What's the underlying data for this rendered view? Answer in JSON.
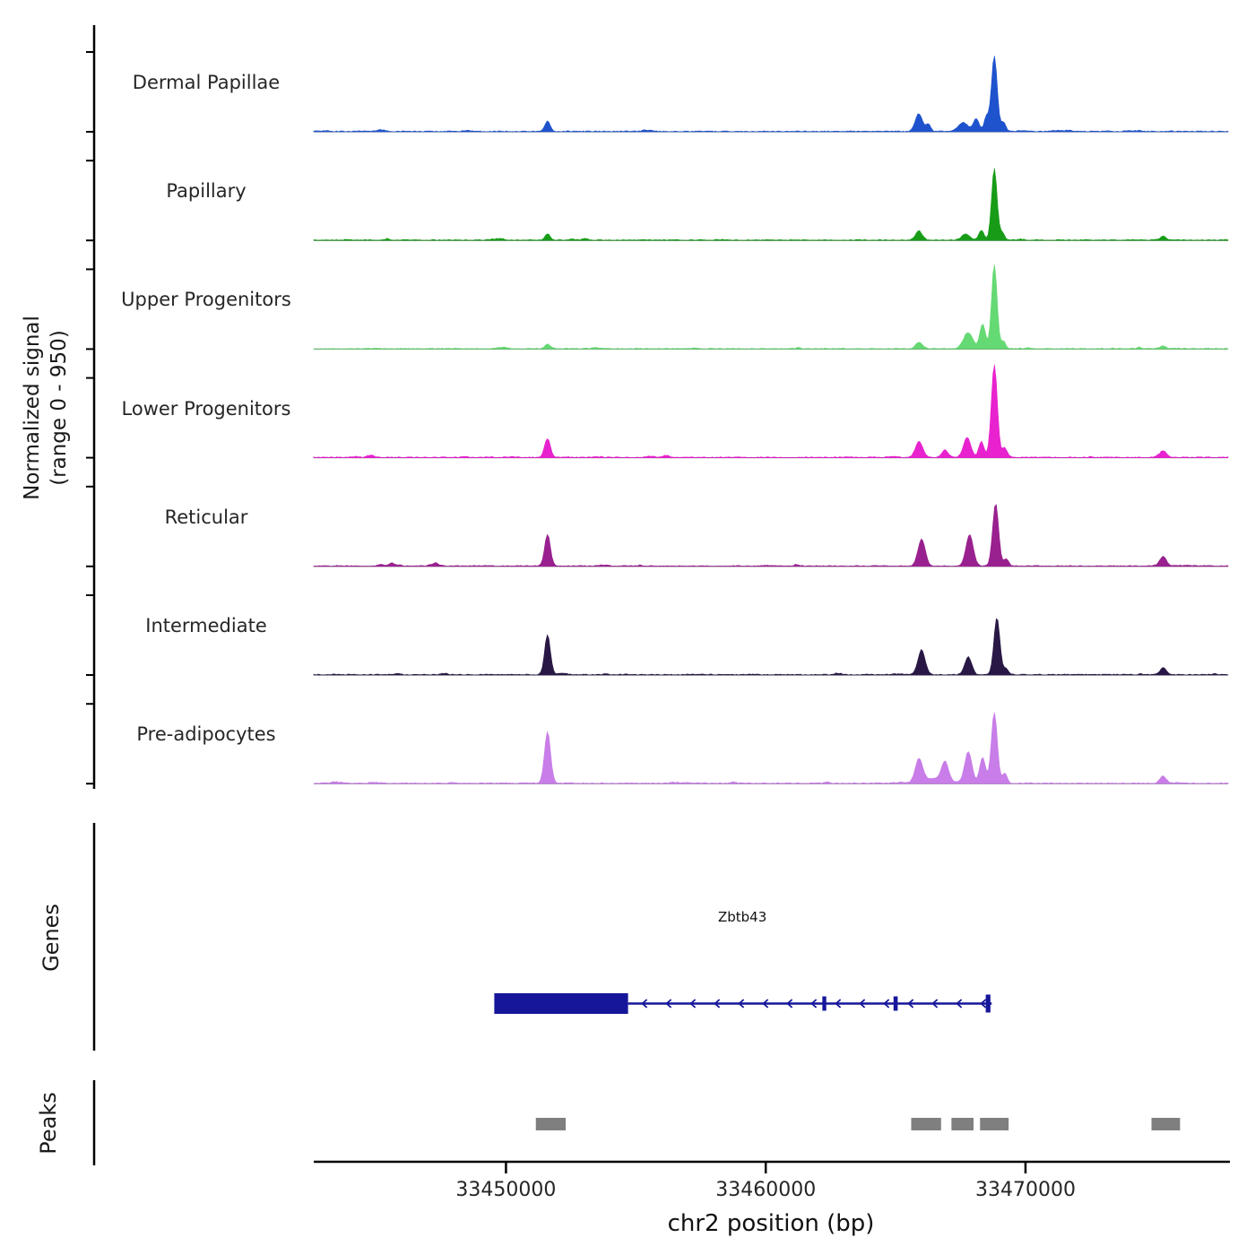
{
  "figure": {
    "background": "#ffffff"
  },
  "axes": {
    "ylabel_line1": "Normalized signal",
    "ylabel_line2": "(range 0 - 950)",
    "xlabel": "chr2 position (bp)",
    "x_tick_labels": [
      "33450000",
      "33460000",
      "33470000"
    ]
  },
  "sections": {
    "genes_label": "Genes",
    "peaks_label": "Peaks"
  },
  "chart_data": {
    "type": "area",
    "title": "",
    "xlabel": "chr2 position (bp)",
    "ylabel": "Normalized signal (range 0 - 950)",
    "x_domain": [
      33442600,
      33477800
    ],
    "x_ticks": [
      33450000,
      33460000,
      33470000
    ],
    "y_range_per_track": [
      0,
      950
    ],
    "peak_format": "[center_bp, sigma_bp, height_in_0_950_units]",
    "tracks": [
      {
        "label": "Dermal Papillae",
        "color": "#1e53cd",
        "peaks": [
          [
            33451600,
            100,
            95
          ],
          [
            33465900,
            130,
            165
          ],
          [
            33466250,
            90,
            70
          ],
          [
            33467600,
            180,
            85
          ],
          [
            33468100,
            110,
            120
          ],
          [
            33468500,
            90,
            140
          ],
          [
            33468800,
            110,
            720
          ],
          [
            33469150,
            90,
            90
          ]
        ]
      },
      {
        "label": "Papillary",
        "color": "#189c18",
        "peaks": [
          [
            33451600,
            100,
            60
          ],
          [
            33465900,
            130,
            85
          ],
          [
            33467700,
            160,
            55
          ],
          [
            33468300,
            100,
            95
          ],
          [
            33468800,
            105,
            680
          ],
          [
            33469100,
            90,
            70
          ],
          [
            33475300,
            110,
            28
          ]
        ]
      },
      {
        "label": "Upper Progenitors",
        "color": "#65d973",
        "peaks": [
          [
            33451600,
            100,
            48
          ],
          [
            33465900,
            130,
            62
          ],
          [
            33467800,
            170,
            150
          ],
          [
            33468350,
            110,
            230
          ],
          [
            33468800,
            105,
            800
          ],
          [
            33469150,
            90,
            70
          ],
          [
            33475300,
            110,
            26
          ]
        ]
      },
      {
        "label": "Lower Progenitors",
        "color": "#e722ce",
        "peaks": [
          [
            33444800,
            120,
            22
          ],
          [
            33451600,
            110,
            180
          ],
          [
            33465900,
            140,
            150
          ],
          [
            33466900,
            120,
            70
          ],
          [
            33467750,
            140,
            185
          ],
          [
            33468300,
            100,
            150
          ],
          [
            33468800,
            115,
            880
          ],
          [
            33469200,
            95,
            90
          ],
          [
            33475300,
            120,
            58
          ]
        ]
      },
      {
        "label": "Reticular",
        "color": "#99218f",
        "peaks": [
          [
            33445600,
            110,
            28
          ],
          [
            33447300,
            110,
            22
          ],
          [
            33451600,
            110,
            300
          ],
          [
            33466000,
            140,
            255
          ],
          [
            33467850,
            140,
            295
          ],
          [
            33468850,
            115,
            590
          ],
          [
            33469250,
            95,
            70
          ],
          [
            33475300,
            120,
            88
          ]
        ]
      },
      {
        "label": "Intermediate",
        "color": "#291845",
        "peaks": [
          [
            33451600,
            110,
            380
          ],
          [
            33466000,
            140,
            235
          ],
          [
            33467800,
            130,
            168
          ],
          [
            33468900,
            115,
            545
          ],
          [
            33469250,
            90,
            60
          ],
          [
            33475300,
            120,
            66
          ]
        ]
      },
      {
        "label": "Pre-adipocytes",
        "color": "#c87de8",
        "peaks": [
          [
            33451600,
            115,
            490
          ],
          [
            33465900,
            140,
            215
          ],
          [
            33466900,
            130,
            180
          ],
          [
            33467800,
            140,
            300
          ],
          [
            33468350,
            110,
            245
          ],
          [
            33468800,
            115,
            670
          ],
          [
            33469200,
            95,
            90
          ],
          [
            33466500,
            500,
            45
          ],
          [
            33475300,
            120,
            68
          ]
        ]
      }
    ],
    "gene": {
      "name": "Zbtb43",
      "strand": "-",
      "color": "#16169b",
      "start": 33449550,
      "end": 33468700,
      "thick_box": [
        33449550,
        33454700
      ],
      "inner_exons": [
        [
          33462180,
          33462330
        ],
        [
          33464920,
          33465080
        ]
      ],
      "end_exon": [
        33468470,
        33468650
      ],
      "label_pos": 33459100
    },
    "peaks_regions": [
      [
        33451150,
        33452300
      ],
      [
        33465600,
        33466750
      ],
      [
        33467150,
        33468000
      ],
      [
        33468250,
        33469350
      ],
      [
        33474850,
        33475950
      ]
    ],
    "peaks_color": "#7f7f7f"
  }
}
